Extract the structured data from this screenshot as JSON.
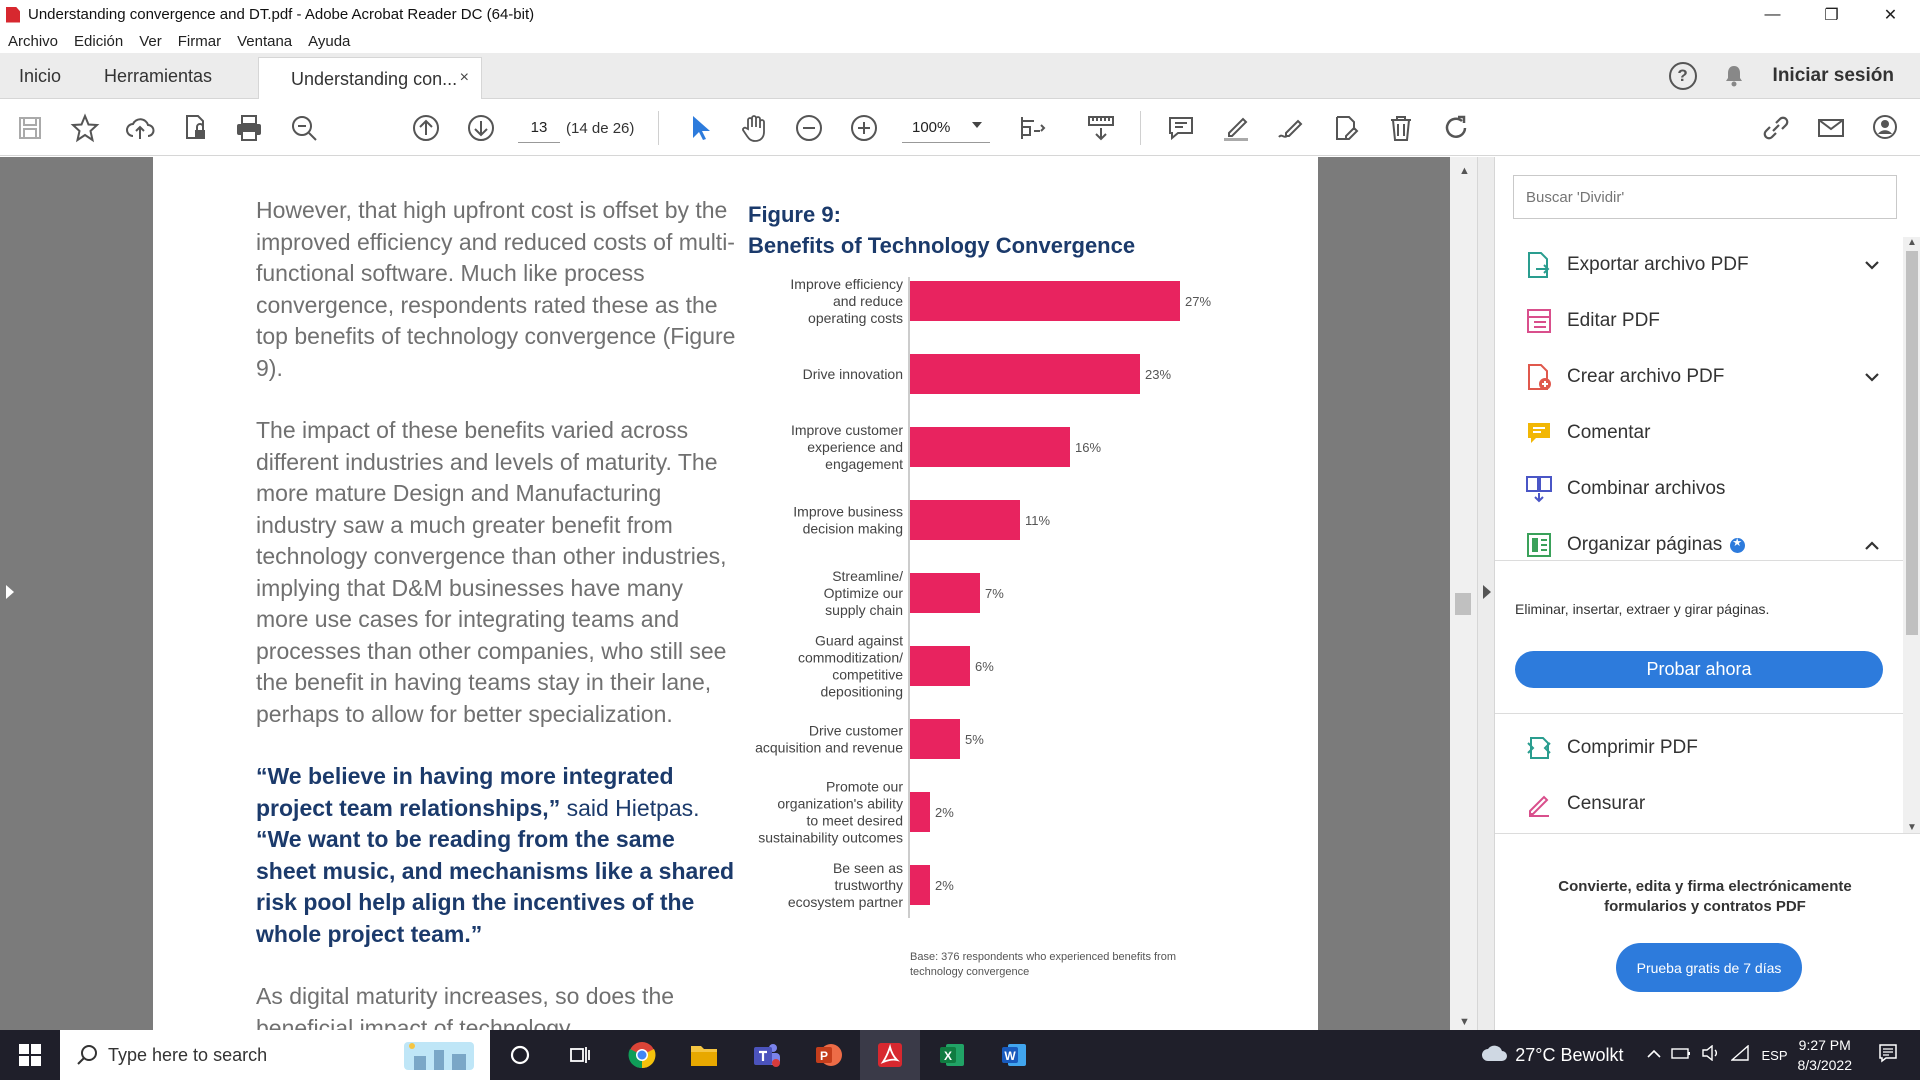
{
  "window": {
    "title": "Understanding convergence and DT.pdf - Adobe Acrobat Reader DC (64-bit)",
    "minimize": "—",
    "maximize": "❐",
    "close": "✕"
  },
  "menu": [
    "Archivo",
    "Edición",
    "Ver",
    "Firmar",
    "Ventana",
    "Ayuda"
  ],
  "tabs": {
    "home": "Inicio",
    "tools": "Herramientas",
    "document": "Understanding con...",
    "close": "×",
    "help": "?",
    "signin": "Iniciar sesión"
  },
  "toolbar": {
    "page_current": "13",
    "page_total": "(14 de 26)",
    "zoom": "100%"
  },
  "document": {
    "para1": "However, that high upfront cost is offset by the improved efficiency and reduced costs of multi-functional software. Much like process convergence, respondents rated these as the top benefits of technology convergence (Figure 9).",
    "para2": "The impact of these benefits varied across different industries and levels of maturity. The more mature Design and Manufacturing industry saw a much greater benefit from technology convergence than other industries, implying that D&M businesses have many more use cases for integrating teams and processes than other companies, who still see the benefit in having teams stay in their lane, perhaps to allow for better specialization.",
    "quote1": "“We believe in having more integrated project team relationships,”",
    "quote_said": "said Hietpas.",
    "quote2": "“We want to be reading from the same sheet music, and mechanisms like a shared risk pool help align the incentives of the whole project team.”",
    "para3": "As digital maturity increases, so does the beneficial impact of technology",
    "figure_label": "Figure 9:",
    "figure_title": "Benefits of Technology Convergence",
    "base_note": "Base: 376 respondents who experienced benefits from technology convergence"
  },
  "chart_data": {
    "type": "bar",
    "orientation": "horizontal",
    "categories": [
      [
        "Improve efficiency",
        "and reduce",
        "operating costs"
      ],
      [
        "Drive innovation"
      ],
      [
        "Improve customer",
        "experience and",
        "engagement"
      ],
      [
        "Improve business",
        "decision making"
      ],
      [
        "Streamline/",
        "Optimize our",
        "supply chain"
      ],
      [
        "Guard against",
        "commoditization/",
        "competitive",
        "depositioning"
      ],
      [
        "Drive customer",
        "acquisition and revenue"
      ],
      [
        "Promote our",
        "organization's ability",
        "to meet desired",
        "sustainability outcomes"
      ],
      [
        "Be seen as",
        "trustworthy",
        "ecosystem partner"
      ]
    ],
    "values": [
      27,
      23,
      16,
      11,
      7,
      6,
      5,
      2,
      2
    ],
    "value_labels": [
      "27%",
      "23%",
      "16%",
      "11%",
      "7%",
      "6%",
      "5%",
      "2%",
      "2%"
    ],
    "bar_color": "#e8235f",
    "xlim": [
      0,
      30
    ]
  },
  "panel": {
    "search_placeholder": "Buscar 'Dividir'",
    "tools": [
      {
        "label": "Exportar archivo PDF",
        "chevron": "⌄"
      },
      {
        "label": "Editar PDF"
      },
      {
        "label": "Crear archivo PDF",
        "chevron": "⌄"
      },
      {
        "label": "Comentar"
      },
      {
        "label": "Combinar archivos"
      },
      {
        "label": "Organizar páginas",
        "chevron": "⌃"
      }
    ],
    "organize_desc": "Eliminar, insertar, extraer y girar páginas.",
    "try_now": "Probar ahora",
    "tools2": [
      {
        "label": "Comprimir PDF"
      },
      {
        "label": "Censurar"
      }
    ],
    "promo": "Convierte, edita y firma electrónicamente formularios y contratos PDF",
    "trial": "Prueba gratis de 7 días"
  },
  "taskbar": {
    "search_placeholder": "Type here to search",
    "weather": "27°C Bewolkt",
    "language": "ESP",
    "time": "9:27 PM",
    "date": "8/3/2022"
  },
  "colors": {
    "acrobat_red": "#d7282f",
    "accent_blue": "#2d7bdc",
    "heading_navy": "#1b3a6b"
  }
}
